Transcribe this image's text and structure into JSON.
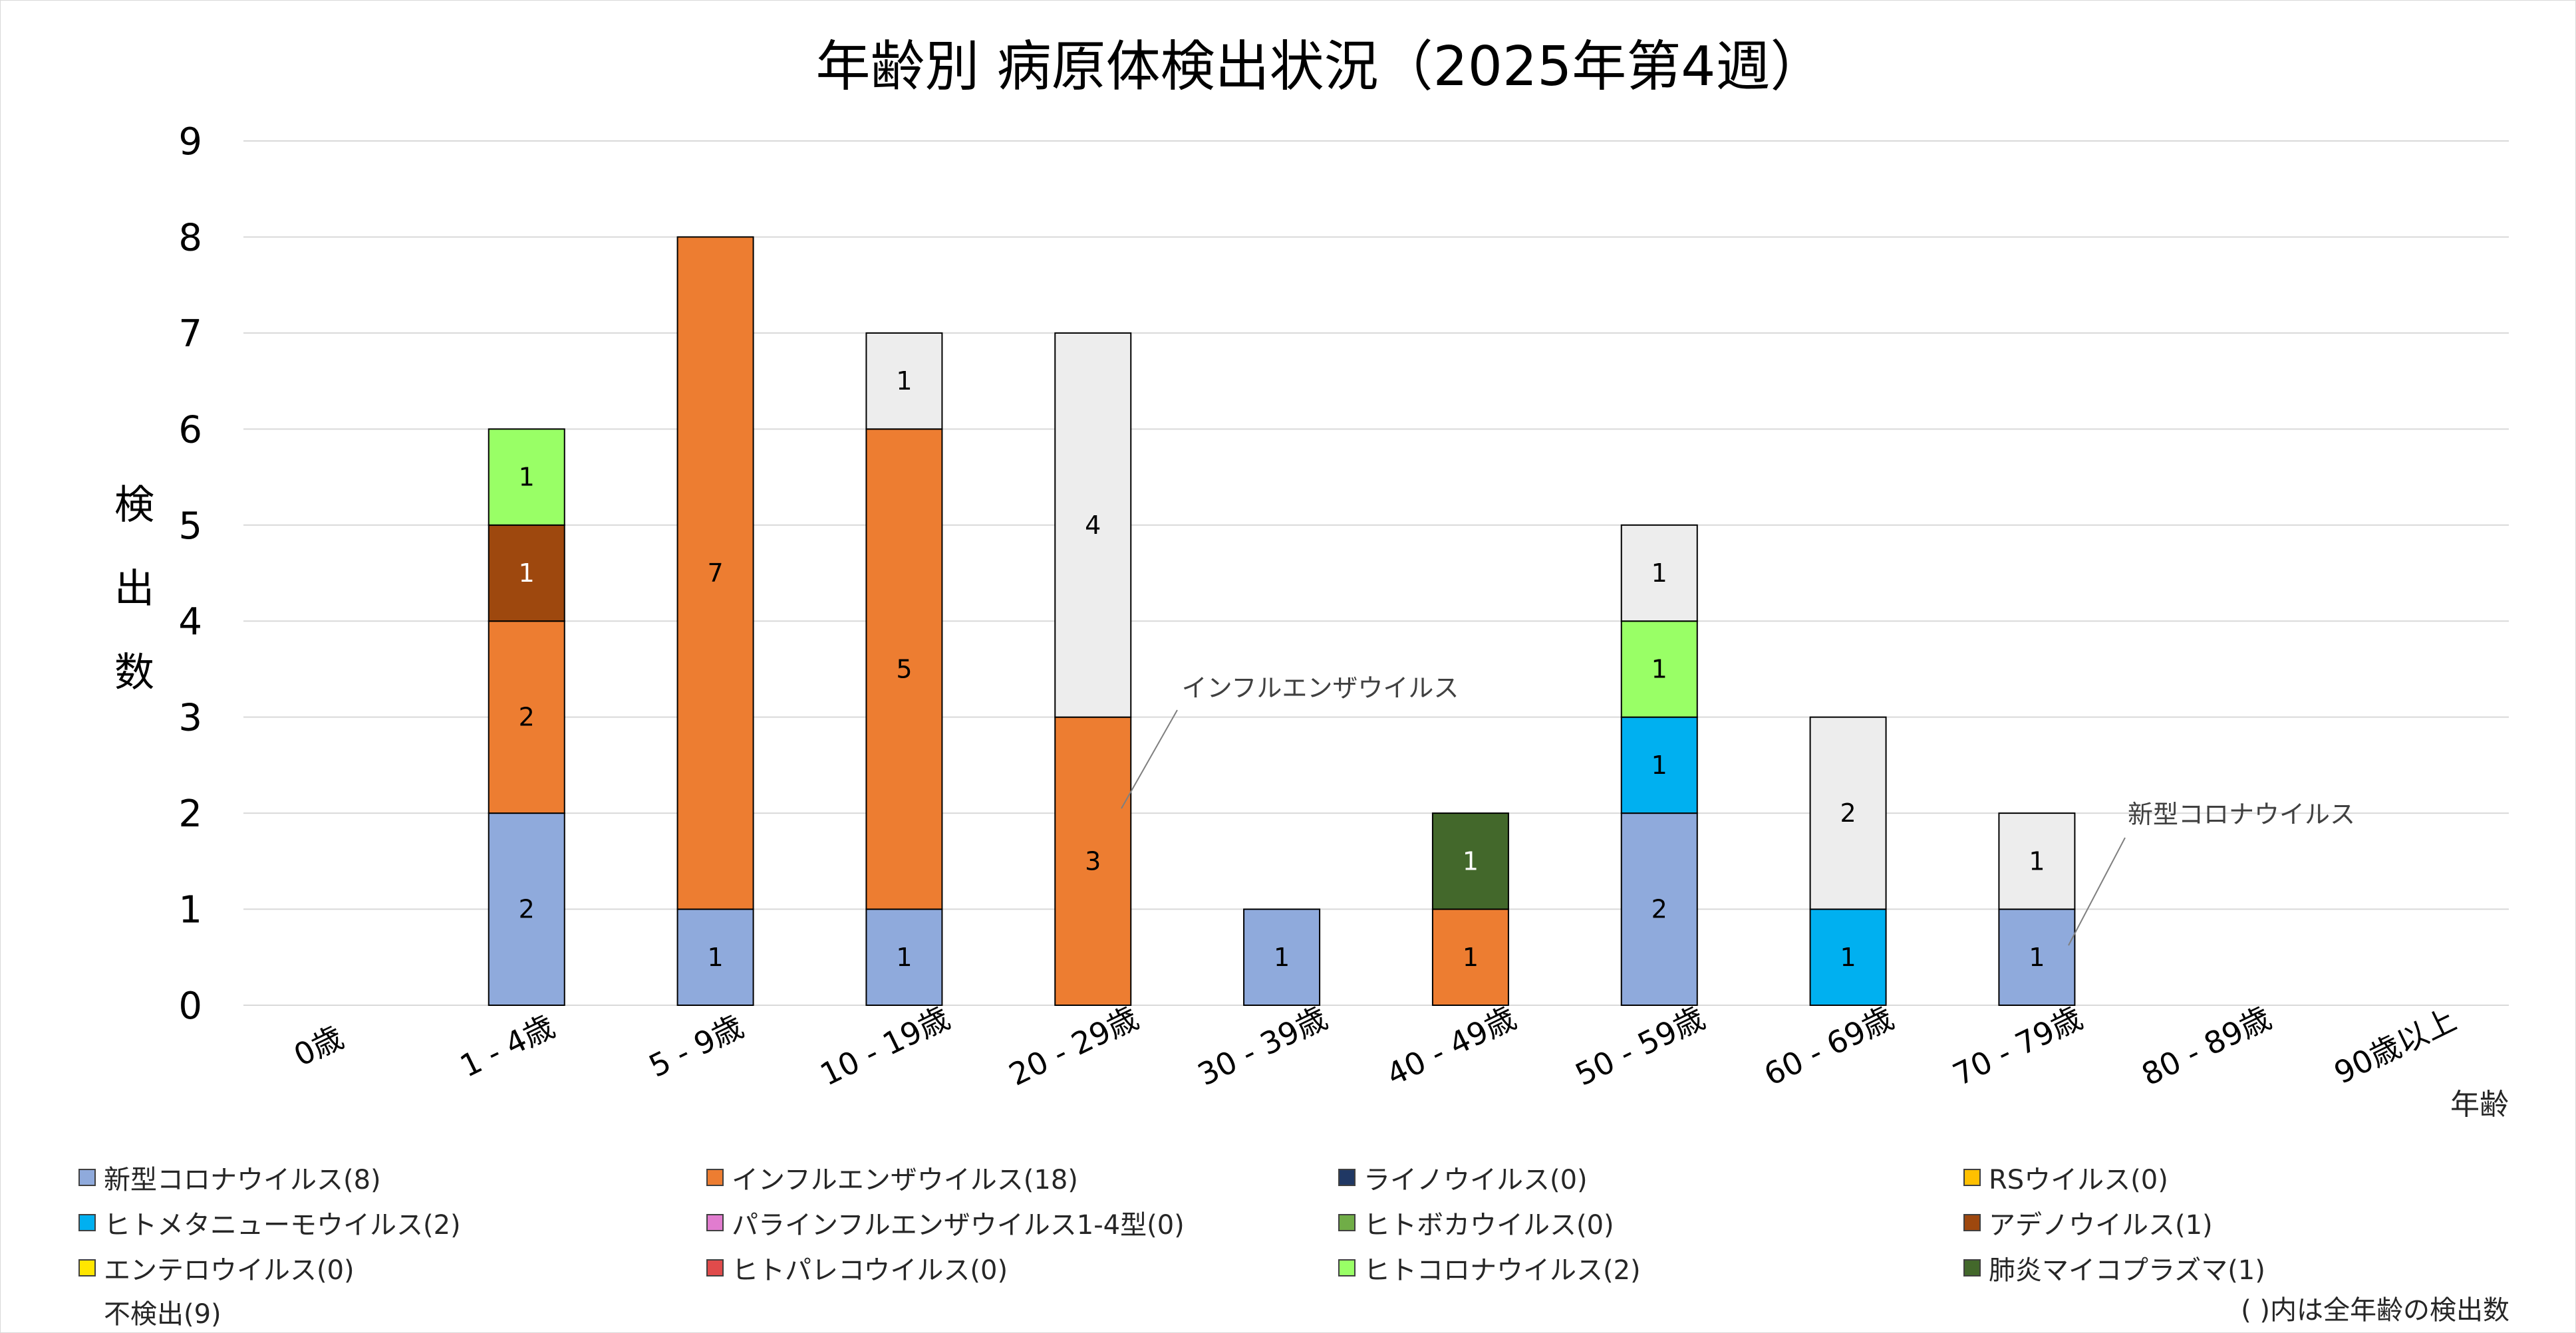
{
  "chart_data": {
    "type": "bar",
    "stacked": true,
    "title": "年齢別 病原体検出状況（2025年第4週）",
    "ylabel": "検出数",
    "xlabel": "年齢",
    "ylim": [
      0,
      9
    ],
    "yticks": [
      "0",
      "1",
      "2",
      "3",
      "4",
      "5",
      "6",
      "7",
      "8",
      "9"
    ],
    "grid": true,
    "categories": [
      "0歳",
      "1 - 4歳",
      "5 - 9歳",
      "10 - 19歳",
      "20 - 29歳",
      "30 - 39歳",
      "40 - 49歳",
      "50 - 59歳",
      "60 - 69歳",
      "70 - 79歳",
      "80 - 89歳",
      "90歳以上"
    ],
    "series": [
      {
        "name": "新型コロナウイルス",
        "legend": "新型コロナウイルス(8)",
        "color": "#8faadc",
        "values": [
          0,
          2,
          1,
          1,
          0,
          1,
          0,
          2,
          0,
          1,
          0,
          0
        ]
      },
      {
        "name": "インフルエンザウイルス",
        "legend": "インフルエンザウイルス(18)",
        "color": "#ed7d31",
        "values": [
          0,
          2,
          7,
          5,
          3,
          0,
          1,
          0,
          0,
          0,
          0,
          0
        ]
      },
      {
        "name": "ライノウイルス",
        "legend": "ライノウイルス(0)",
        "color": "#203864",
        "values": [
          0,
          0,
          0,
          0,
          0,
          0,
          0,
          0,
          0,
          0,
          0,
          0
        ]
      },
      {
        "name": "RSウイルス",
        "legend": "RSウイルス(0)",
        "color": "#ffc000",
        "values": [
          0,
          0,
          0,
          0,
          0,
          0,
          0,
          0,
          0,
          0,
          0,
          0
        ]
      },
      {
        "name": "ヒトメタニューモウイルス",
        "legend": "ヒトメタニューモウイルス(2)",
        "color": "#00b0f0",
        "values": [
          0,
          0,
          0,
          0,
          0,
          0,
          0,
          1,
          1,
          0,
          0,
          0
        ]
      },
      {
        "name": "パラインフルエンザウイルス1-4型",
        "legend": "パラインフルエンザウイルス1-4型(0)",
        "color": "#e17ccf",
        "values": [
          0,
          0,
          0,
          0,
          0,
          0,
          0,
          0,
          0,
          0,
          0,
          0
        ]
      },
      {
        "name": "ヒトボカウイルス",
        "legend": "ヒトボカウイルス(0)",
        "color": "#70ad47",
        "values": [
          0,
          0,
          0,
          0,
          0,
          0,
          0,
          0,
          0,
          0,
          0,
          0
        ]
      },
      {
        "name": "アデノウイルス",
        "legend": "アデノウイルス(1)",
        "color": "#9e480e",
        "values": [
          0,
          1,
          0,
          0,
          0,
          0,
          0,
          0,
          0,
          0,
          0,
          0
        ]
      },
      {
        "name": "エンテロウイルス",
        "legend": "エンテロウイルス(0)",
        "color": "#ffe600",
        "values": [
          0,
          0,
          0,
          0,
          0,
          0,
          0,
          0,
          0,
          0,
          0,
          0
        ]
      },
      {
        "name": "ヒトパレコウイルス",
        "legend": "ヒトパレコウイルス(0)",
        "color": "#e04b4b",
        "values": [
          0,
          0,
          0,
          0,
          0,
          0,
          0,
          0,
          0,
          0,
          0,
          0
        ]
      },
      {
        "name": "ヒトコロナウイルス",
        "legend": "ヒトコロナウイルス(2)",
        "color": "#99ff66",
        "values": [
          0,
          1,
          0,
          0,
          0,
          0,
          0,
          1,
          0,
          0,
          0,
          0
        ]
      },
      {
        "name": "肺炎マイコプラズマ",
        "legend": "肺炎マイコプラズマ(1)",
        "color": "#43682b",
        "values": [
          0,
          0,
          0,
          0,
          0,
          0,
          1,
          0,
          0,
          0,
          0,
          0
        ]
      },
      {
        "name": "不検出",
        "legend": "不検出(9)",
        "color": "#ededed",
        "values": [
          0,
          0,
          0,
          1,
          4,
          0,
          0,
          1,
          2,
          1,
          0,
          0
        ]
      }
    ],
    "annotations": [
      {
        "text": "インフルエンザウイルス",
        "category": "20 - 29歳",
        "value": 1.9
      },
      {
        "text": "新型コロナウイルス",
        "category": "70 - 79歳",
        "value": 0.6
      }
    ],
    "footnote": "( )内は全年齢の検出数"
  }
}
